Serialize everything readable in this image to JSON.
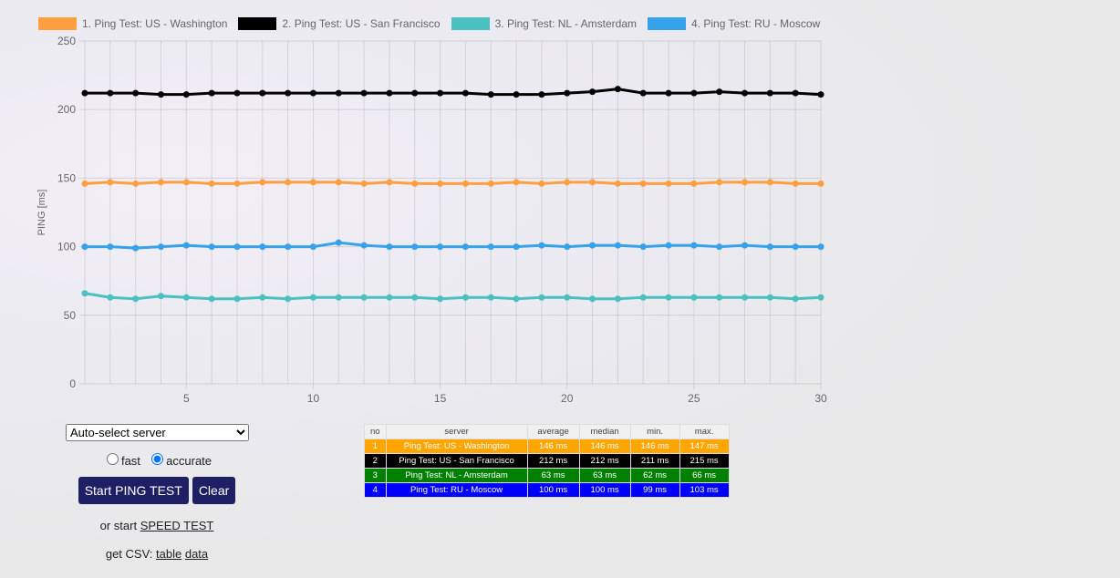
{
  "legend": [
    {
      "label": "1. Ping Test: US - Washington",
      "color": "#ff9f40"
    },
    {
      "label": "2. Ping Test: US - San Francisco",
      "color": "#000000"
    },
    {
      "label": "3. Ping Test: NL - Amsterdam",
      "color": "#4bc0c0"
    },
    {
      "label": "4. Ping Test: RU - Moscow",
      "color": "#36a2eb"
    }
  ],
  "chart_data": {
    "type": "line",
    "ylabel": "PING [ms]",
    "ylim": [
      0,
      250
    ],
    "yticks": [
      0,
      50,
      100,
      150,
      200,
      250
    ],
    "xticks": [
      5,
      10,
      15,
      20,
      25,
      30
    ],
    "x": [
      1,
      2,
      3,
      4,
      5,
      6,
      7,
      8,
      9,
      10,
      11,
      12,
      13,
      14,
      15,
      16,
      17,
      18,
      19,
      20,
      21,
      22,
      23,
      24,
      25,
      26,
      27,
      28,
      29,
      30
    ],
    "series": [
      {
        "name": "1. Ping Test: US - Washington",
        "color": "#ff9f40",
        "values": [
          146,
          147,
          146,
          147,
          147,
          146,
          146,
          147,
          147,
          147,
          147,
          146,
          147,
          146,
          146,
          146,
          146,
          147,
          146,
          147,
          147,
          146,
          146,
          146,
          146,
          147,
          147,
          147,
          146,
          146
        ]
      },
      {
        "name": "2. Ping Test: US - San Francisco",
        "color": "#000000",
        "values": [
          212,
          212,
          212,
          211,
          211,
          212,
          212,
          212,
          212,
          212,
          212,
          212,
          212,
          212,
          212,
          212,
          211,
          211,
          211,
          212,
          213,
          215,
          212,
          212,
          212,
          213,
          212,
          212,
          212,
          211
        ]
      },
      {
        "name": "3. Ping Test: NL - Amsterdam",
        "color": "#4bc0c0",
        "values": [
          66,
          63,
          62,
          64,
          63,
          62,
          62,
          63,
          62,
          63,
          63,
          63,
          63,
          63,
          62,
          63,
          63,
          62,
          63,
          63,
          62,
          62,
          63,
          63,
          63,
          63,
          63,
          63,
          62,
          63
        ]
      },
      {
        "name": "4. Ping Test: RU - Moscow",
        "color": "#36a2eb",
        "values": [
          100,
          100,
          99,
          100,
          101,
          100,
          100,
          100,
          100,
          100,
          103,
          101,
          100,
          100,
          100,
          100,
          100,
          100,
          101,
          100,
          101,
          101,
          100,
          101,
          101,
          100,
          101,
          100,
          100,
          100
        ]
      }
    ]
  },
  "controls": {
    "server_select": "Auto-select server",
    "fast": "fast",
    "accurate": "accurate",
    "start": "Start PING TEST",
    "clear": "Clear",
    "or_start": "or start",
    "speed_test": "SPEED TEST",
    "get_csv": "get CSV:",
    "table": "table",
    "data": "data"
  },
  "table": {
    "headers": [
      "no",
      "server",
      "average",
      "median",
      "min.",
      "max."
    ],
    "rows": [
      {
        "bg": "#ffa500",
        "cells": [
          "1",
          "Ping Test: US - Washington",
          "146 ms",
          "146 ms",
          "146 ms",
          "147 ms"
        ]
      },
      {
        "bg": "#000000",
        "cells": [
          "2",
          "Ping Test: US - San Francisco",
          "212 ms",
          "212 ms",
          "211 ms",
          "215 ms"
        ]
      },
      {
        "bg": "#008000",
        "cells": [
          "3",
          "Ping Test: NL - Amsterdam",
          "63 ms",
          "63 ms",
          "62 ms",
          "66 ms"
        ]
      },
      {
        "bg": "#0000ff",
        "cells": [
          "4",
          "Ping Test: RU - Moscow",
          "100 ms",
          "100 ms",
          "99 ms",
          "103 ms"
        ]
      }
    ]
  }
}
